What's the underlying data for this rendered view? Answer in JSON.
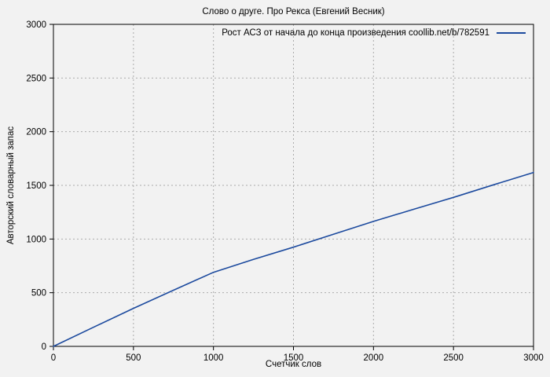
{
  "colors": {
    "background": "#f2f2f2",
    "line": "#1c4a9e",
    "grid": "#ababab",
    "axis": "#000000",
    "text": "#000000"
  },
  "chart_data": {
    "type": "line",
    "title": "Слово о друге. Про Рекса (Евгений Весник)",
    "xlabel": "Счетчик слов",
    "ylabel": "Авторский словарный запас",
    "xlim": [
      0,
      3000
    ],
    "ylim": [
      0,
      3000
    ],
    "x_ticks": [
      0,
      500,
      1000,
      1500,
      2000,
      2500,
      3000
    ],
    "y_ticks": [
      0,
      500,
      1000,
      1500,
      2000,
      2500,
      3000
    ],
    "grid": true,
    "legend_position": "top-right-inside",
    "legend": [
      {
        "label": "Рост АСЗ от начала до конца произведения coollib.net/b/782591",
        "color": "#1c4a9e"
      }
    ],
    "series": [
      {
        "name": "Рост АСЗ от начала до конца произведения coollib.net/b/782591",
        "x": [
          0,
          250,
          500,
          750,
          1000,
          1250,
          1500,
          1750,
          2000,
          2250,
          2500,
          2750,
          3000
        ],
        "y": [
          0,
          178,
          354,
          523,
          690,
          810,
          924,
          1045,
          1164,
          1277,
          1388,
          1505,
          1620
        ]
      }
    ]
  }
}
